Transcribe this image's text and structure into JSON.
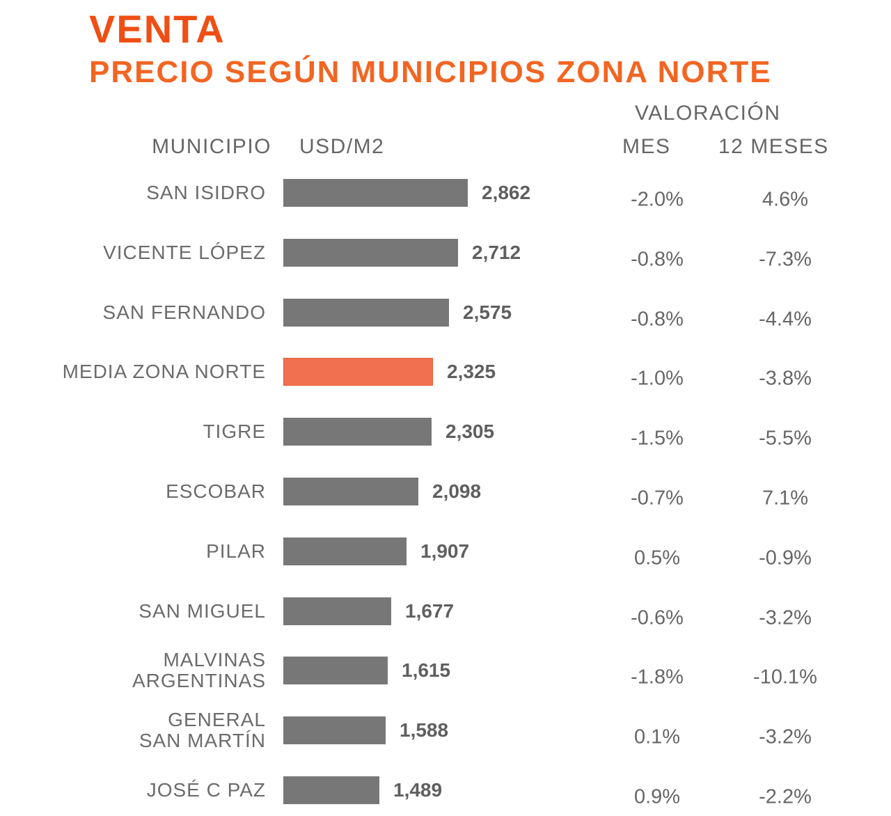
{
  "title": "VENTA",
  "subtitle": "PRECIO SEGÚN MUNICIPIOS ZONA NORTE",
  "headers": {
    "municipio": "MUNICIPIO",
    "usd": "USD/M2",
    "valoracion": "VALORACIÓN",
    "mes": "MES",
    "doce_meses": "12 MESES"
  },
  "colors": {
    "bar": "#777777",
    "highlight": "#f07050",
    "accent": "#f04e14"
  },
  "chart_data": {
    "type": "bar",
    "orientation": "horizontal",
    "title": "PRECIO SEGÚN MUNICIPIOS ZONA NORTE",
    "ylabel": "MUNICIPIO",
    "xlabel": "USD/M2",
    "xlim": [
      0,
      3400
    ],
    "highlight_category": "MEDIA ZONA NORTE",
    "categories": [
      "SAN ISIDRO",
      "VICENTE LÓPEZ",
      "SAN FERNANDO",
      "MEDIA ZONA NORTE",
      "TIGRE",
      "ESCOBAR",
      "PILAR",
      "SAN MIGUEL",
      "MALVINAS ARGENTINAS",
      "GENERAL SAN MARTÍN",
      "JOSÉ C PAZ"
    ],
    "values": [
      2862,
      2712,
      2575,
      2325,
      2305,
      2098,
      1907,
      1677,
      1615,
      1588,
      1489
    ],
    "value_labels": [
      "2,862",
      "2,712",
      "2,575",
      "2,325",
      "2,305",
      "2,098",
      "1,907",
      "1,677",
      "1,615",
      "1,588",
      "1,489"
    ],
    "valoracion_mes": [
      "-2.0%",
      "-0.8%",
      "-0.8%",
      "-1.0%",
      "-1.5%",
      "-0.7%",
      "0.5%",
      "-0.6%",
      "-1.8%",
      "0.1%",
      "0.9%"
    ],
    "valoracion_12_meses": [
      "4.6%",
      "-7.3%",
      "-4.4%",
      "-3.8%",
      "-5.5%",
      "7.1%",
      "-0.9%",
      "-3.2%",
      "-10.1%",
      "-3.2%",
      "-2.2%"
    ]
  }
}
